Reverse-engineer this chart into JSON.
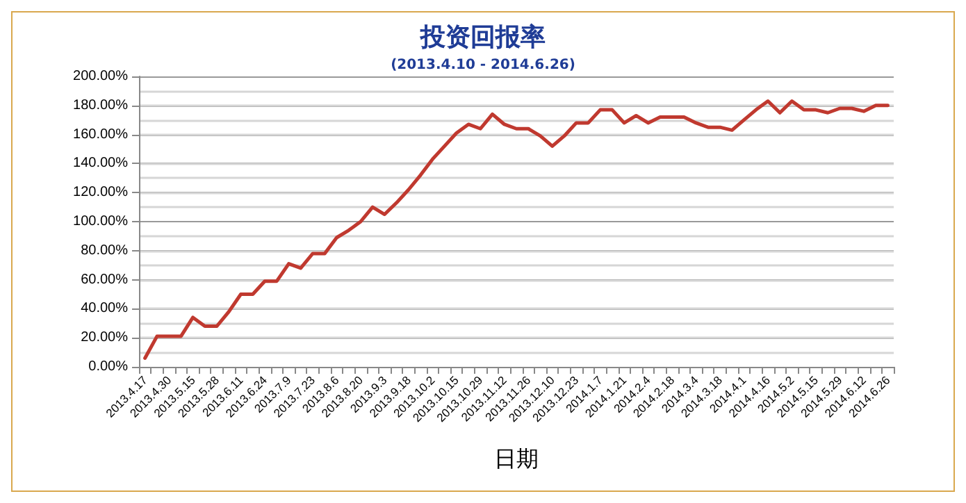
{
  "chart_data": {
    "type": "line",
    "title": "投资回报率",
    "subtitle": "(2013.4.10 - 2014.6.26)",
    "xlabel": "日期",
    "categories": [
      "2013.4.17",
      null,
      "2013.4.30",
      null,
      "2013.5.15",
      null,
      "2013.5.28",
      null,
      "2013.6.11",
      null,
      "2013.6.24",
      null,
      "2013.7.9",
      null,
      "2013.7.23",
      null,
      "2013.8.6",
      null,
      "2013.8.20",
      null,
      "2013.9.3",
      null,
      "2013.9.18",
      null,
      "2013.10.2",
      null,
      "2013.10.15",
      null,
      "2013.10.29",
      null,
      "2013.11.12",
      null,
      "2013.11.26",
      null,
      "2013.12.10",
      null,
      "2013.12.23",
      null,
      "2014.1.7",
      null,
      "2014.1.21",
      null,
      "2014.2.4",
      null,
      "2014.2.18",
      null,
      "2014.3.4",
      null,
      "2014.3.18",
      null,
      "2014.4.1",
      null,
      "2014.4.16",
      null,
      "2014.5.2",
      null,
      "2014.5.15",
      null,
      "2014.5.29",
      null,
      "2014.6.12",
      null,
      "2014.6.26"
    ],
    "series": [
      {
        "color": "#c0392f",
        "values": [
          6,
          21,
          21,
          21,
          34,
          28,
          28,
          38,
          50,
          50,
          59,
          59,
          71,
          68,
          78,
          78,
          89,
          94,
          100,
          110,
          105,
          113,
          122,
          132,
          143,
          152,
          161,
          167,
          164,
          174,
          167,
          164,
          164,
          159,
          152,
          159,
          168,
          168,
          177,
          177,
          168,
          173,
          168,
          172,
          172,
          172,
          168,
          165,
          165,
          163,
          170,
          177,
          183,
          175,
          183,
          177,
          177,
          175,
          178,
          178,
          176,
          180,
          180
        ]
      }
    ],
    "ylim": [
      0,
      200
    ],
    "yticks": [
      {
        "value": 0,
        "label": "0.00%"
      },
      {
        "value": 20,
        "label": "20.00%"
      },
      {
        "value": 40,
        "label": "40.00%"
      },
      {
        "value": 60,
        "label": "60.00%"
      },
      {
        "value": 80,
        "label": "80.00%"
      },
      {
        "value": 100,
        "label": "100.00%"
      },
      {
        "value": 120,
        "label": "120.00%"
      },
      {
        "value": 140,
        "label": "140.00%"
      },
      {
        "value": 160,
        "label": "160.00%"
      },
      {
        "value": 180,
        "label": "180.00%"
      },
      {
        "value": 200,
        "label": "200.00%"
      }
    ],
    "grid": "y",
    "marker": "none",
    "line_style": "solid"
  }
}
